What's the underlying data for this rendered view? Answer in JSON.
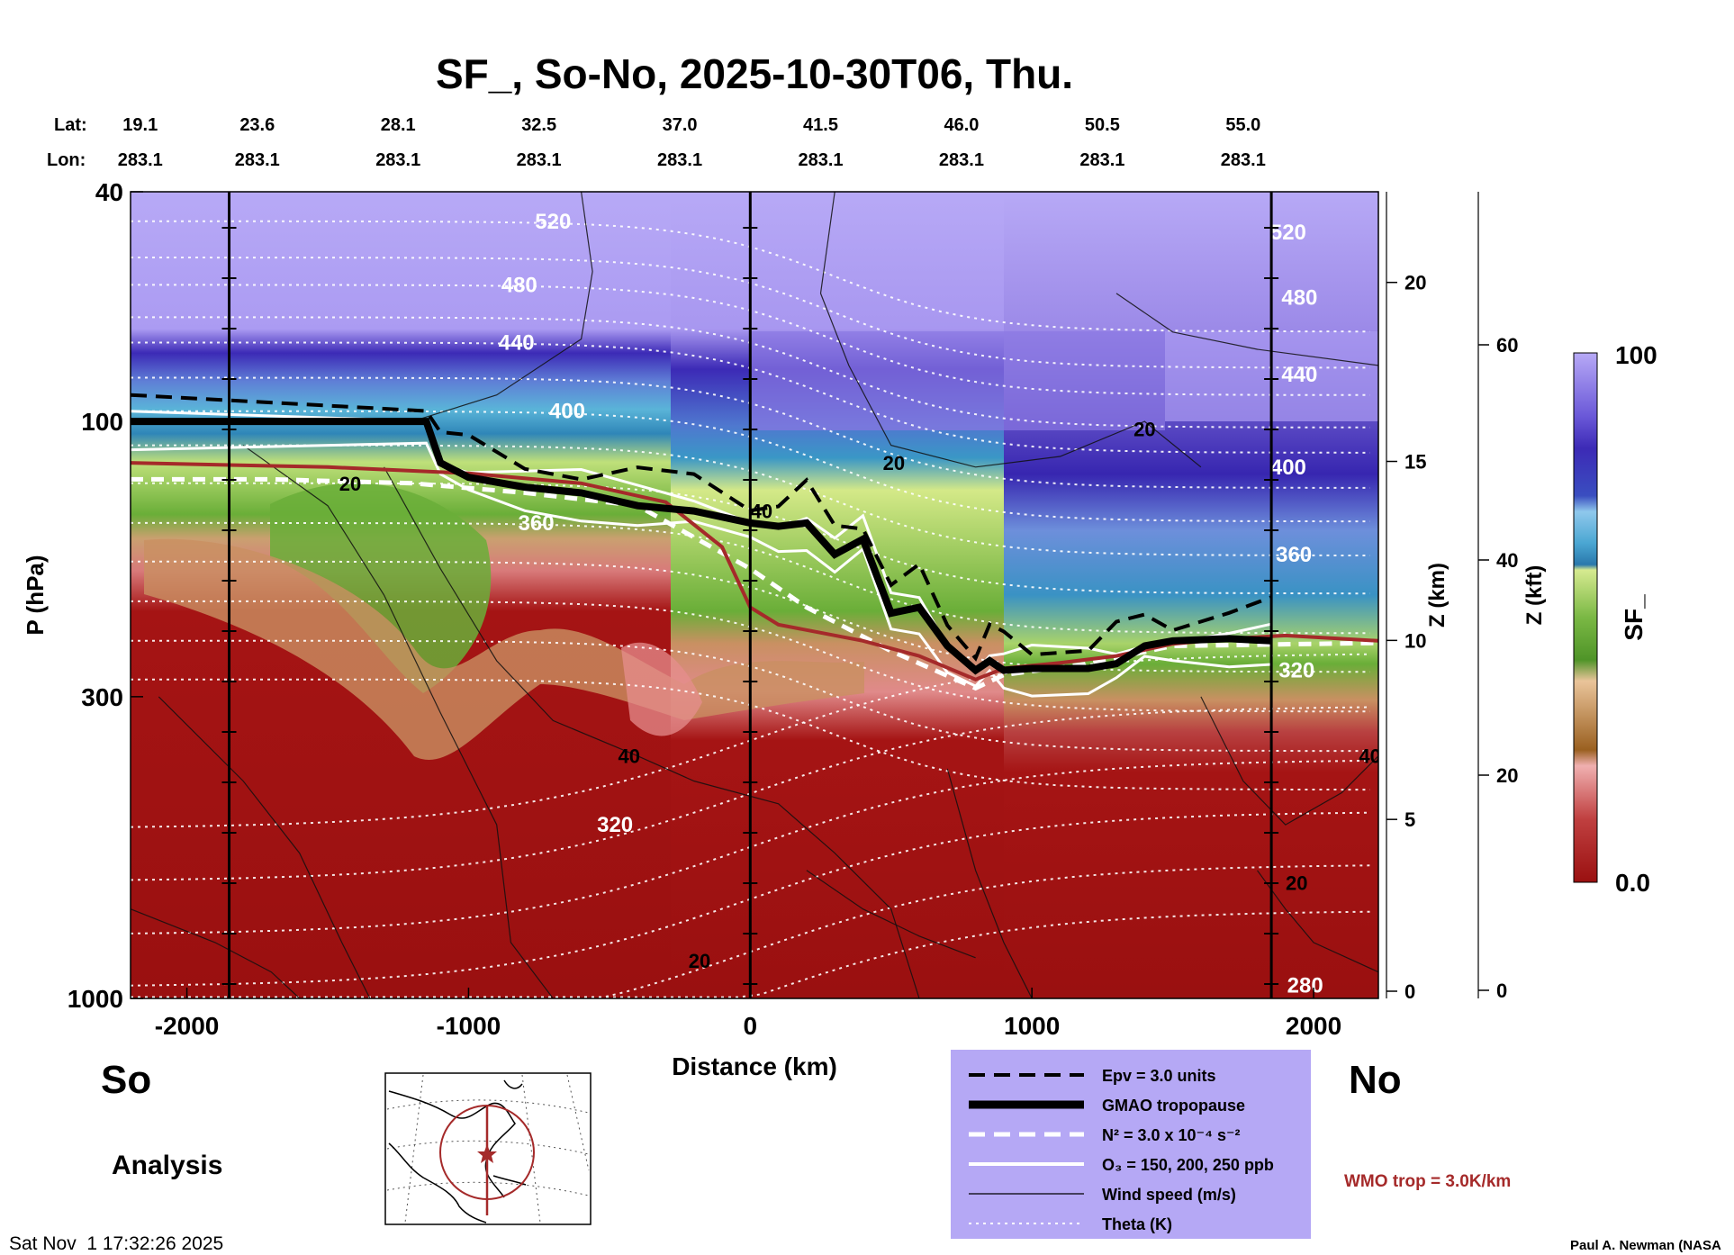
{
  "chart_data": {
    "type": "heatmap",
    "title": "SF_, So-No, 2025-10-30T06, Thu.",
    "xlabel": "Distance (km)",
    "ylabel": "P (hPa)",
    "y2label": "Z (km)",
    "y3label": "Z (kft)",
    "colorbar_label": "SF_",
    "colorbar_range": [
      0.0,
      100
    ],
    "colorbar_tick_labels": [
      "100",
      "0.0"
    ],
    "xlim": [
      -2200,
      2230
    ],
    "ylim": [
      1000,
      40
    ],
    "y_scale": "log",
    "x_ticks": [
      -2000,
      -1000,
      0,
      1000,
      2000
    ],
    "x_tick_labels": [
      "-2000",
      "-1000",
      "0",
      "1000",
      "2000"
    ],
    "y_ticks": [
      40,
      100,
      300,
      1000
    ],
    "y_tick_labels": [
      "40",
      "100",
      "300",
      "1000"
    ],
    "z_km_ticks": [
      0,
      5,
      10,
      15,
      20
    ],
    "z_km_tick_labels": [
      "0",
      "5",
      "10",
      "15",
      "20"
    ],
    "z_kft_ticks": [
      0,
      20,
      40,
      60
    ],
    "z_kft_tick_labels": [
      "0",
      "20",
      "40",
      "60"
    ],
    "lat_label": "Lat:",
    "lon_label": "Lon:",
    "lat_values": [
      "19.1",
      "23.6",
      "28.1",
      "32.5",
      "37.0",
      "41.5",
      "46.0",
      "50.5",
      "55.0"
    ],
    "lon_values": [
      "283.1",
      "283.1",
      "283.1",
      "283.1",
      "283.1",
      "283.1",
      "283.1",
      "283.1",
      "283.1"
    ],
    "vertical_markers_km": [
      -1850,
      0,
      1850
    ],
    "theta_labels": [
      {
        "text": "520",
        "x": -700,
        "p": 45
      },
      {
        "text": "480",
        "x": -820,
        "p": 58
      },
      {
        "text": "440",
        "x": -830,
        "p": 73
      },
      {
        "text": "400",
        "x": -650,
        "p": 96
      },
      {
        "text": "360",
        "x": -760,
        "p": 150
      },
      {
        "text": "320",
        "x": -480,
        "p": 500
      },
      {
        "text": "520",
        "x": 1910,
        "p": 47
      },
      {
        "text": "480",
        "x": 1950,
        "p": 61
      },
      {
        "text": "440",
        "x": 1950,
        "p": 83
      },
      {
        "text": "400",
        "x": 1910,
        "p": 120
      },
      {
        "text": "360",
        "x": 1930,
        "p": 170
      },
      {
        "text": "320",
        "x": 1940,
        "p": 270
      },
      {
        "text": "280",
        "x": 1970,
        "p": 950
      }
    ],
    "wind_labels": [
      {
        "text": "20",
        "x": -1420,
        "p": 128
      },
      {
        "text": "40",
        "x": -430,
        "p": 380
      },
      {
        "text": "20",
        "x": 510,
        "p": 118
      },
      {
        "text": "40",
        "x": 40,
        "p": 143
      },
      {
        "text": "20",
        "x": 1400,
        "p": 103
      },
      {
        "text": "40",
        "x": 2200,
        "p": 380
      },
      {
        "text": "20",
        "x": 1940,
        "p": 630
      },
      {
        "text": "20",
        "x": -180,
        "p": 860
      }
    ],
    "gmao_tropopause": {
      "x": [
        -2200,
        -1150,
        -1100,
        -1000,
        -800,
        -600,
        -400,
        -200,
        0,
        100,
        200,
        300,
        400,
        500,
        600,
        700,
        800,
        850,
        900,
        1000,
        1200,
        1300,
        1400,
        1500,
        1700,
        1850
      ],
      "p": [
        100,
        100,
        118,
        125,
        130,
        133,
        140,
        143,
        150,
        152,
        150,
        170,
        160,
        215,
        210,
        245,
        270,
        260,
        270,
        268,
        268,
        263,
        245,
        240,
        238,
        240
      ]
    },
    "wmo_tropopause": {
      "x": [
        -2200,
        -1500,
        -1000,
        -600,
        -300,
        -100,
        0,
        100,
        400,
        600,
        800,
        900,
        1100,
        1300,
        1500,
        1700,
        1900,
        2230
      ],
      "p": [
        118,
        120,
        123,
        128,
        138,
        165,
        210,
        225,
        240,
        255,
        280,
        268,
        262,
        255,
        243,
        238,
        235,
        240
      ]
    },
    "n2_contour": {
      "x": [
        -2200,
        -1700,
        -1200,
        -800,
        -400,
        0,
        200,
        500,
        800,
        900,
        1200,
        1500,
        2230
      ],
      "p": [
        126,
        126,
        128,
        133,
        140,
        180,
        210,
        250,
        290,
        275,
        263,
        245,
        242
      ]
    },
    "legend": {
      "items": [
        {
          "label": "Epv = 3.0 units",
          "style": "black-dashed"
        },
        {
          "label": "GMAO tropopause",
          "style": "black-thick"
        },
        {
          "label": "N² = 3.0 x 10⁻⁴ s⁻²",
          "style": "white-dashed"
        },
        {
          "label": "O₃ = 150, 200, 250 ppb",
          "style": "white-solid"
        },
        {
          "label": "Wind speed (m/s)",
          "style": "black-thin"
        },
        {
          "label": "Theta (K)",
          "style": "white-dotted"
        }
      ],
      "bg_color": "#b5a8f5",
      "placement": "bottom-center"
    },
    "colors": {
      "stratosphere_top": "#b4a6f5",
      "stratosphere_deep": "#3c2ab8",
      "transition_blue": "#3a8fc0",
      "green": "#6eb03a",
      "tan": "#c89060",
      "troposphere": "#a01414",
      "wmo_line": "#a52a2a"
    }
  },
  "labels": {
    "south": "So",
    "north": "No",
    "analysis": "Analysis",
    "wmo_trop": "WMO trop = 3.0K/km",
    "timestamp": "Sat Nov  1 17:32:26 2025",
    "author": "Paul A. Newman (NASA"
  }
}
